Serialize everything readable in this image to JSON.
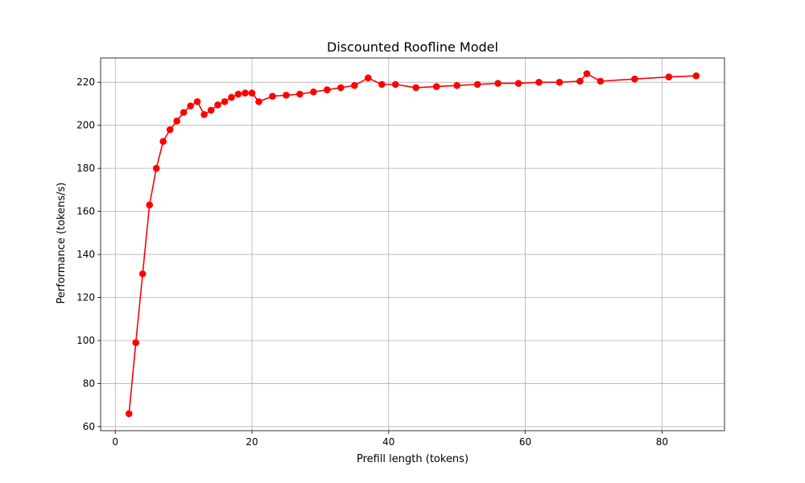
{
  "chart_data": {
    "type": "line",
    "title": "Discounted Roofline Model",
    "xlabel": "Prefill length (tokens)",
    "ylabel": "Performance (tokens/s)",
    "xlim": [
      -2.15,
      89.15
    ],
    "ylim": [
      58.1,
      231.3
    ],
    "xticks": [
      0,
      20,
      40,
      60,
      80
    ],
    "yticks": [
      60,
      80,
      100,
      120,
      140,
      160,
      180,
      200,
      220
    ],
    "grid": true,
    "color": "#ff0000",
    "marker": "circle",
    "series": [
      {
        "x": [
          2,
          3,
          4,
          5,
          6,
          7,
          8,
          9,
          10,
          11,
          12,
          13,
          14,
          15,
          16,
          17,
          18,
          19,
          20,
          21,
          23,
          25,
          27,
          29,
          31,
          33,
          35,
          37,
          39,
          41,
          44,
          47,
          50,
          53,
          56,
          59,
          62,
          65,
          68,
          69,
          71,
          76,
          81,
          85
        ],
        "values": [
          66,
          99,
          131,
          163,
          180,
          192.5,
          198,
          202,
          206,
          209,
          211,
          205,
          207,
          209.5,
          211,
          213,
          214.5,
          215,
          215,
          211,
          213.5,
          214,
          214.5,
          215.5,
          216.5,
          217.5,
          218.5,
          222,
          219,
          219,
          217.5,
          218,
          218.5,
          219,
          219.5,
          219.5,
          220,
          220,
          220.5,
          224,
          220.5,
          221.5,
          222.5,
          223
        ]
      }
    ]
  }
}
